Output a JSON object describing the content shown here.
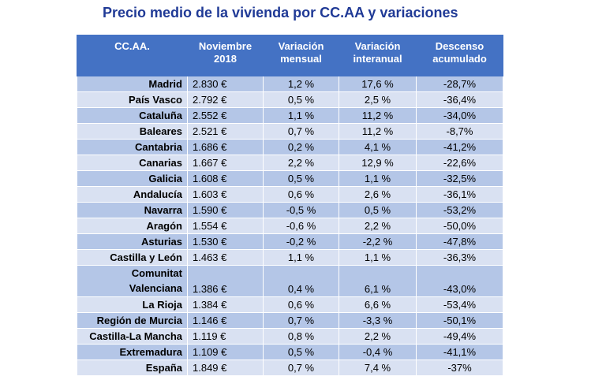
{
  "title": "Precio medio de la vivienda por CC.AA y variaciones",
  "headers": [
    "CC.AA.",
    "Noviembre 2018",
    "Variación mensual",
    "Variación interanual",
    "Descenso acumulado"
  ],
  "rows": [
    {
      "region": "Madrid",
      "price": "2.830 €",
      "monthly": "1,2 %",
      "annual": "17,6 %",
      "cum": "-28,7%"
    },
    {
      "region": "País Vasco",
      "price": "2.792 €",
      "monthly": "0,5 %",
      "annual": "2,5 %",
      "cum": "-36,4%"
    },
    {
      "region": "Cataluña",
      "price": "2.552 €",
      "monthly": "1,1 %",
      "annual": "11,2 %",
      "cum": "-34,0%"
    },
    {
      "region": "Baleares",
      "price": "2.521 €",
      "monthly": "0,7 %",
      "annual": "11,2 %",
      "cum": "-8,7%"
    },
    {
      "region": "Cantabria",
      "price": "1.686 €",
      "monthly": "0,2 %",
      "annual": "4,1 %",
      "cum": "-41,2%"
    },
    {
      "region": "Canarias",
      "price": "1.667 €",
      "monthly": "2,2 %",
      "annual": "12,9 %",
      "cum": "-22,6%"
    },
    {
      "region": "Galicia",
      "price": "1.608 €",
      "monthly": "0,5 %",
      "annual": "1,1 %",
      "cum": "-32,5%"
    },
    {
      "region": "Andalucía",
      "price": "1.603 €",
      "monthly": "0,6 %",
      "annual": "2,6 %",
      "cum": "-36,1%"
    },
    {
      "region": "Navarra",
      "price": "1.590 €",
      "monthly": "-0,5 %",
      "annual": "0,5 %",
      "cum": "-53,2%"
    },
    {
      "region": "Aragón",
      "price": "1.554 €",
      "monthly": "-0,6 %",
      "annual": "2,2 %",
      "cum": "-50,0%"
    },
    {
      "region": "Asturias",
      "price": "1.530 €",
      "monthly": "-0,2 %",
      "annual": "-2,2 %",
      "cum": "-47,8%"
    },
    {
      "region": "Castilla y León",
      "price": "1.463 €",
      "monthly": "1,1 %",
      "annual": "1,1 %",
      "cum": "-36,3%"
    },
    {
      "region": "Comunitat Valenciana",
      "price": "1.386 €",
      "monthly": "0,4 %",
      "annual": "6,1 %",
      "cum": "-43,0%"
    },
    {
      "region": "La Rioja",
      "price": "1.384 €",
      "monthly": "0,6 %",
      "annual": "6,6 %",
      "cum": "-53,4%"
    },
    {
      "region": "Región de Murcia",
      "price": "1.146 €",
      "monthly": "0,7 %",
      "annual": "-3,3 %",
      "cum": "-50,1%"
    },
    {
      "region": "Castilla-La Mancha",
      "price": "1.119 €",
      "monthly": "0,8 %",
      "annual": "2,2 %",
      "cum": "-49,4%"
    },
    {
      "region": "Extremadura",
      "price": "1.109 €",
      "monthly": "0,5 %",
      "annual": "-0,4 %",
      "cum": "-41,1%"
    },
    {
      "region": "España",
      "price": "1.849 €",
      "monthly": "0,7 %",
      "annual": "7,4 %",
      "cum": "-37%"
    }
  ],
  "colors": {
    "title": "#203a96",
    "header": "#4472c4",
    "row_dark": "#b4c6e7",
    "row_light": "#d9e1f2",
    "negative": "#ff0000"
  }
}
